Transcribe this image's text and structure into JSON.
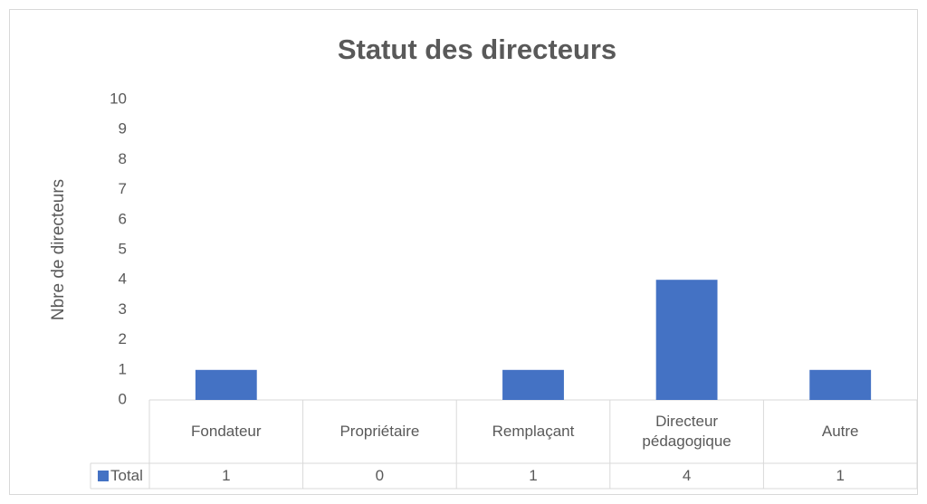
{
  "chart_data": {
    "type": "bar",
    "title": "Statut des directeurs",
    "y_label": "Nbre de directeurs",
    "categories": [
      "Fondateur",
      "Propriétaire",
      "Remplaçant",
      "Directeur pédagogique",
      "Autre"
    ],
    "series": [
      {
        "name": "Total",
        "color": "#4472c4",
        "values": [
          1,
          0,
          1,
          4,
          1
        ]
      }
    ],
    "ylim": [
      0,
      10
    ],
    "yticks": [
      0,
      1,
      2,
      3,
      4,
      5,
      6,
      7,
      8,
      9,
      10
    ],
    "grid": false,
    "data_table": true
  }
}
